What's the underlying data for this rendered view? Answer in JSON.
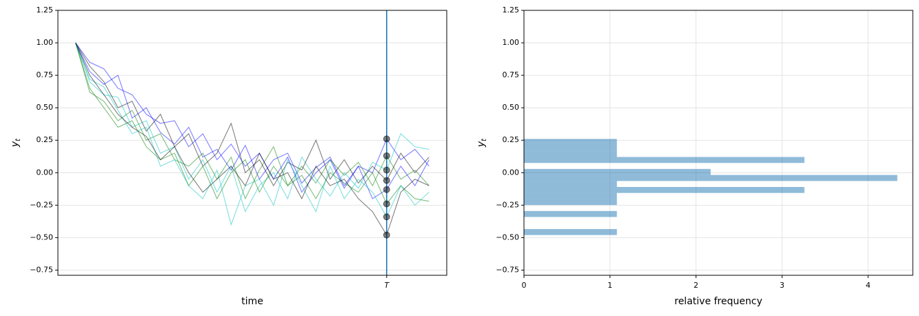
{
  "chart_data": [
    {
      "type": "line",
      "xlabel": "time",
      "ylabel": "y",
      "ylabel_sub": "t",
      "x": [
        0,
        4,
        8,
        12,
        16,
        20,
        24,
        28,
        32,
        36,
        40,
        44,
        48,
        52,
        56,
        60,
        64,
        68,
        72,
        76,
        80,
        84,
        88,
        92,
        96,
        100
      ],
      "xlim": [
        -5,
        105
      ],
      "xticks": [
        {
          "value": 88,
          "label": "T"
        }
      ],
      "ylim": [
        -0.79,
        1.25
      ],
      "yticks": [
        {
          "value": -0.75,
          "label": "−0.75"
        },
        {
          "value": -0.5,
          "label": "−0.50"
        },
        {
          "value": -0.25,
          "label": "−0.25"
        },
        {
          "value": 0,
          "label": "0.00"
        },
        {
          "value": 0.25,
          "label": "0.25"
        },
        {
          "value": 0.5,
          "label": "0.50"
        },
        {
          "value": 0.75,
          "label": "0.75"
        },
        {
          "value": 1,
          "label": "1.00"
        },
        {
          "value": 1.25,
          "label": "1.25"
        }
      ],
      "grid": "y",
      "alpha": 0.5,
      "vline_color": "#1f77b4",
      "marker_color": "#000000",
      "series": [
        {
          "color": "#0000ff",
          "values": [
            1,
            0.78,
            0.68,
            0.75,
            0.42,
            0.5,
            0.31,
            0.22,
            0.35,
            0.12,
            0.18,
            0.02,
            0.21,
            -0.05,
            0.1,
            0.15,
            -0.08,
            0.04,
            0.12,
            -0.1,
            0.05,
            0.0,
            0.26,
            0.1,
            0.18,
            0.05
          ]
        },
        {
          "color": "#008000",
          "values": [
            1,
            0.62,
            0.55,
            0.4,
            0.48,
            0.25,
            0.3,
            0.1,
            0.05,
            0.15,
            -0.05,
            0.12,
            -0.2,
            0.02,
            0.2,
            -0.1,
            0.05,
            -0.08,
            0.1,
            -0.02,
            0.08,
            -0.1,
            0.13,
            -0.05,
            0.02,
            -0.1
          ]
        },
        {
          "color": "#00bfbf",
          "values": [
            1,
            0.7,
            0.6,
            0.58,
            0.35,
            0.4,
            0.15,
            0.2,
            -0.05,
            0.1,
            -0.15,
            0.05,
            -0.3,
            -0.1,
            0.0,
            -0.2,
            0.12,
            -0.05,
            -0.18,
            0.0,
            -0.12,
            0.08,
            0.02,
            0.3,
            0.2,
            0.18
          ]
        },
        {
          "color": "#000000",
          "values": [
            1,
            0.82,
            0.7,
            0.5,
            0.55,
            0.32,
            0.45,
            0.2,
            0.3,
            0.05,
            0.15,
            0.38,
            0.0,
            0.1,
            -0.1,
            0.08,
            0.02,
            0.25,
            -0.05,
            0.1,
            -0.08,
            0.05,
            -0.06,
            0.15,
            0.0,
            0.12
          ]
        },
        {
          "color": "#0000ff",
          "values": [
            1,
            0.85,
            0.8,
            0.65,
            0.6,
            0.45,
            0.38,
            0.4,
            0.2,
            0.3,
            0.1,
            0.22,
            0.05,
            0.15,
            -0.05,
            0.12,
            -0.15,
            0.0,
            0.1,
            -0.12,
            0.05,
            -0.2,
            -0.13,
            0.05,
            -0.1,
            0.1
          ]
        },
        {
          "color": "#008000",
          "values": [
            1,
            0.65,
            0.5,
            0.35,
            0.4,
            0.2,
            0.1,
            0.15,
            -0.1,
            0.05,
            -0.2,
            0.0,
            0.1,
            -0.15,
            0.05,
            -0.1,
            -0.02,
            -0.2,
            0.0,
            -0.08,
            -0.15,
            0.0,
            -0.24,
            -0.1,
            -0.2,
            -0.22
          ]
        },
        {
          "color": "#00bfbf",
          "values": [
            1,
            0.72,
            0.66,
            0.48,
            0.3,
            0.35,
            0.05,
            0.1,
            -0.1,
            -0.2,
            0.02,
            -0.4,
            -0.1,
            -0.05,
            -0.25,
            0.1,
            -0.1,
            -0.3,
            0.05,
            -0.2,
            -0.05,
            -0.15,
            -0.34,
            -0.1,
            -0.25,
            -0.15
          ]
        },
        {
          "color": "#000000",
          "values": [
            1,
            0.75,
            0.6,
            0.45,
            0.35,
            0.28,
            0.1,
            0.2,
            0.0,
            -0.15,
            -0.05,
            0.05,
            -0.1,
            0.15,
            -0.05,
            0.0,
            -0.2,
            0.05,
            -0.1,
            -0.05,
            -0.2,
            -0.3,
            -0.48,
            -0.15,
            -0.05,
            -0.1
          ]
        }
      ]
    },
    {
      "type": "histogram",
      "orientation": "horizontal",
      "xlabel": "relative frequency",
      "ylabel": "y",
      "ylabel_sub": "t",
      "bins": [
        -0.48,
        -0.434,
        -0.3875,
        -0.341,
        -0.295,
        -0.249,
        -0.2025,
        -0.156,
        -0.11,
        -0.064,
        -0.0175,
        0.029,
        0.075,
        0.121,
        0.1675,
        0.214,
        0.26
      ],
      "values": [
        1.08,
        0,
        0,
        1.08,
        0,
        1.08,
        1.08,
        3.26,
        1.08,
        4.34,
        2.17,
        0,
        3.26,
        1.08,
        1.08,
        1.08
      ],
      "color": "#1f77b4",
      "alpha": 0.5,
      "xlim": [
        0,
        4.52
      ],
      "xticks": [
        0,
        1,
        2,
        3,
        4
      ],
      "ylim": [
        -0.79,
        1.25
      ],
      "yticks": [
        {
          "value": -0.75,
          "label": "−0.75"
        },
        {
          "value": -0.5,
          "label": "−0.50"
        },
        {
          "value": -0.25,
          "label": "−0.25"
        },
        {
          "value": 0,
          "label": "0.00"
        },
        {
          "value": 0.25,
          "label": "0.25"
        },
        {
          "value": 0.5,
          "label": "0.50"
        },
        {
          "value": 0.75,
          "label": "0.75"
        },
        {
          "value": 1,
          "label": "1.00"
        },
        {
          "value": 1.25,
          "label": "1.25"
        }
      ],
      "grid": "both"
    }
  ]
}
